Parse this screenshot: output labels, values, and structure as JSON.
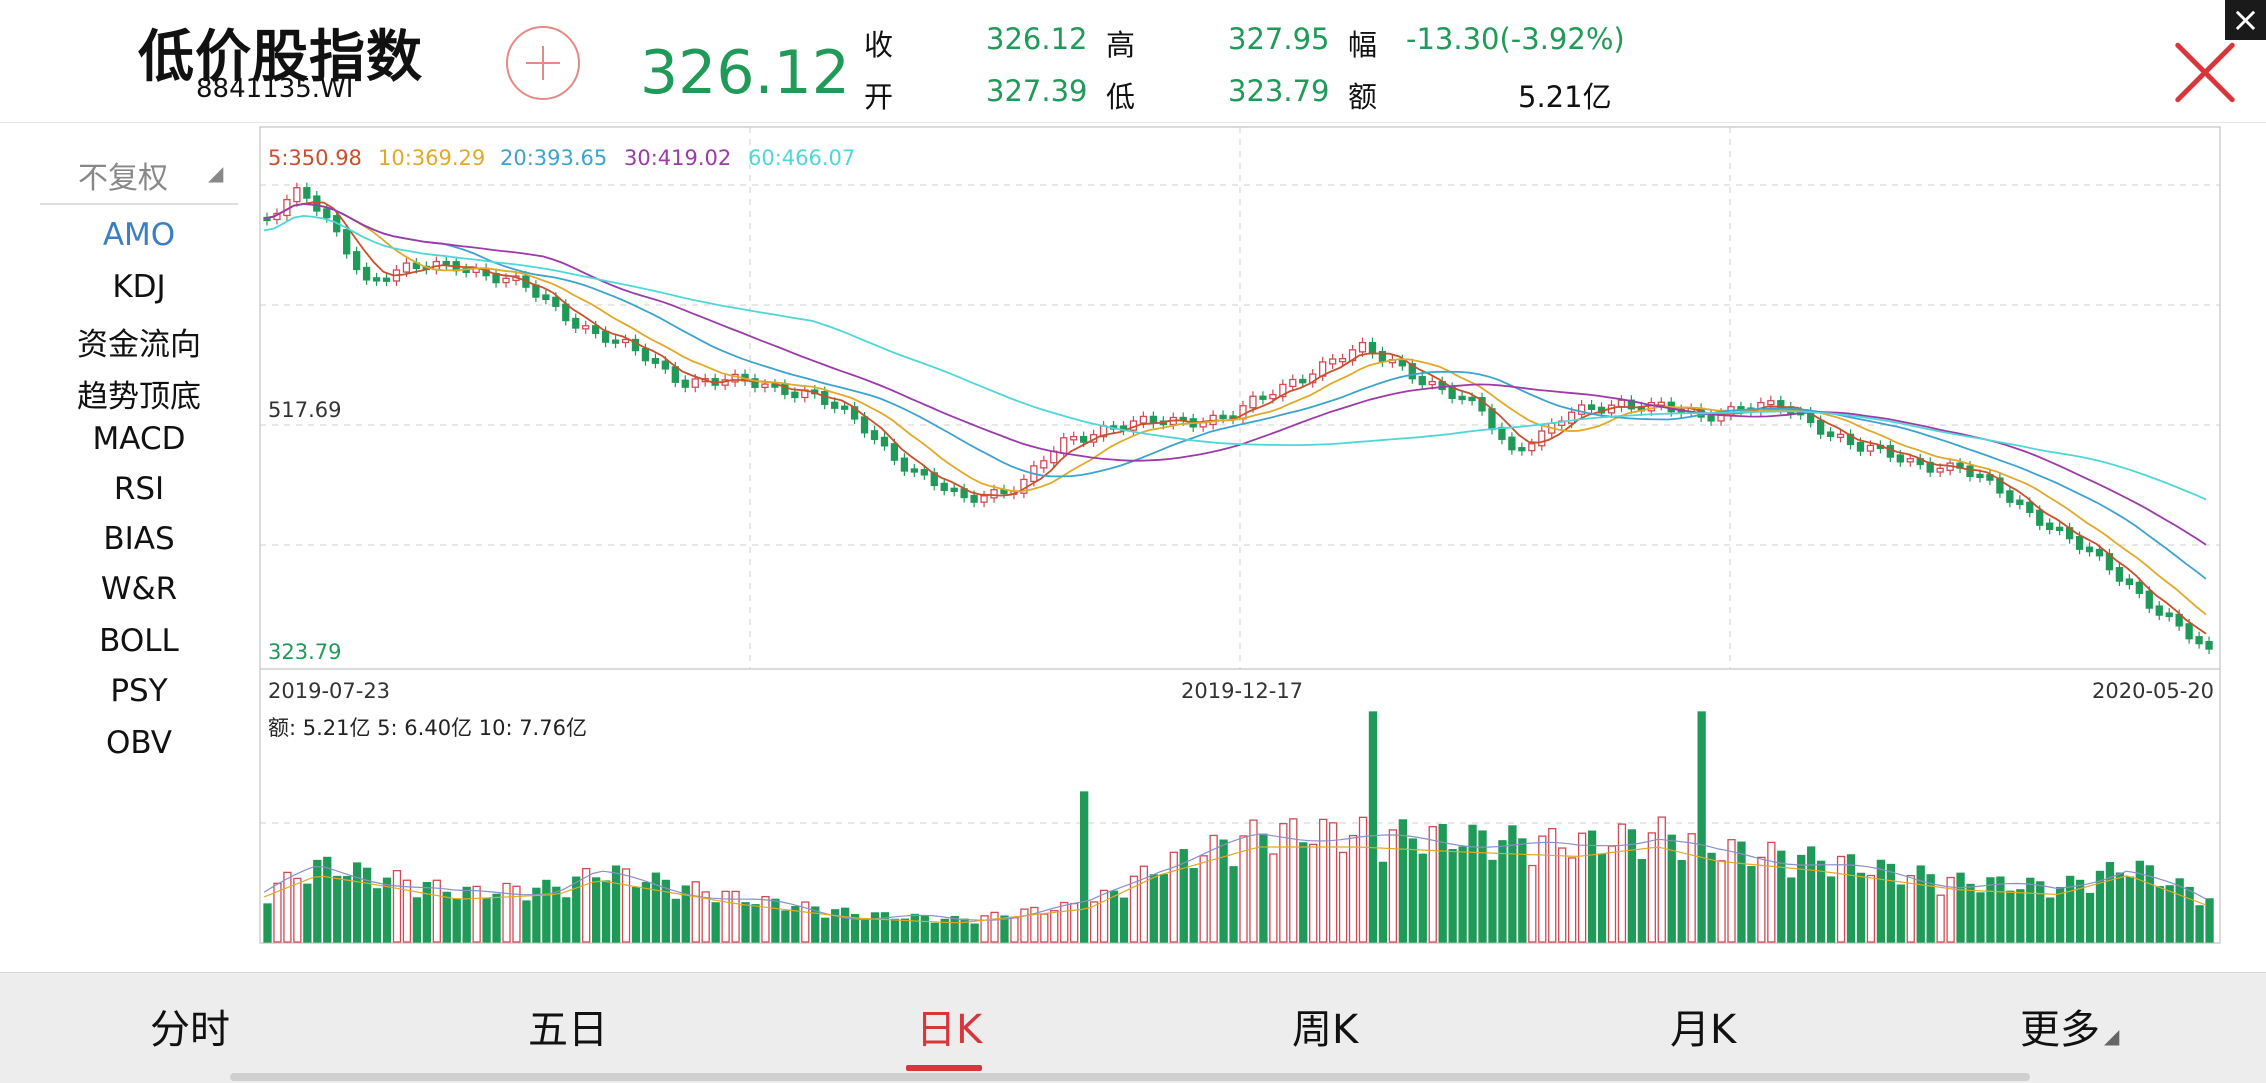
{
  "header": {
    "name": "低价股指数",
    "code": "8841135.WI",
    "price": "326.12",
    "close_label": "收",
    "close_value": "326.12",
    "high_label": "高",
    "high_value": "327.95",
    "change_label": "幅",
    "change_value": "-13.30(-3.92%)",
    "open_label": "开",
    "open_value": "327.39",
    "low_label": "低",
    "low_value": "323.79",
    "amount_label": "额",
    "amount_value": "5.21亿",
    "close_icon_small": "×"
  },
  "sidebar": {
    "adjust_label": "不复权",
    "items": [
      "AMO",
      "KDJ",
      "资金流向",
      "趋势顶底",
      "MACD",
      "RSI",
      "BIAS",
      "W&R",
      "BOLL",
      "PSY",
      "OBV"
    ],
    "active_index": 0
  },
  "legend": {
    "ma5": "5:350.98",
    "ma10": "10:369.29",
    "ma20": "20:393.65",
    "ma30": "30:419.02",
    "ma60": "60:466.07"
  },
  "price_axis": {
    "mid": "517.69",
    "low": "323.79"
  },
  "date_axis": {
    "start": "2019-07-23",
    "mid": "2019-12-17",
    "end": "2020-05-20"
  },
  "volume_legend": "额: 5.21亿  5: 6.40亿  10: 7.76亿",
  "colors": {
    "up": "#d04a55",
    "down": "#1f9a58",
    "ma5": "#c8502a",
    "ma10": "#e0a928",
    "ma20": "#3ea2cf",
    "ma30": "#9b3aa8",
    "ma60": "#4fd6d8"
  },
  "tabs": [
    {
      "label": "分时"
    },
    {
      "label": "五日"
    },
    {
      "label": "日K"
    },
    {
      "label": "周K"
    },
    {
      "label": "月K"
    },
    {
      "label": "更多"
    }
  ],
  "active_tab": 2
}
